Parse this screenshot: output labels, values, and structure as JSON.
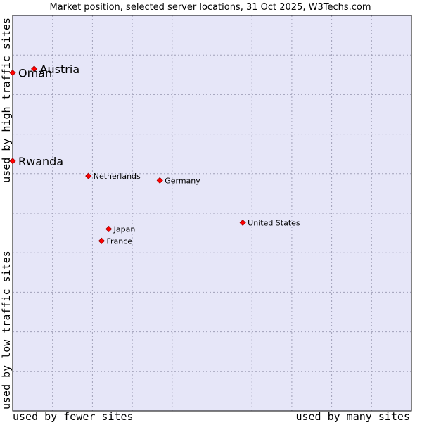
{
  "chart_data": {
    "type": "scatter",
    "title": "Market position, selected server locations, 31 Oct 2025, W3Techs.com",
    "x_axis": {
      "low_label": "used by fewer sites",
      "high_label": "used by many sites",
      "range": [
        0,
        100
      ]
    },
    "y_axis": {
      "low_label": "used by low traffic sites",
      "high_label": "used by high traffic sites",
      "range": [
        0,
        100
      ]
    },
    "grid": true,
    "colors": {
      "plot_background": "#e6e6f8",
      "grid": "#a0a0b8",
      "marker": "#ff0000",
      "marker_edge": "#990000",
      "text": "#000000"
    },
    "points": [
      {
        "label": "Austria",
        "x": 5.4,
        "y": 86.5,
        "emphasis": true
      },
      {
        "label": "Oman",
        "x": 0.0,
        "y": 85.5,
        "emphasis": true
      },
      {
        "label": "Rwanda",
        "x": 0.0,
        "y": 63.2,
        "emphasis": true
      },
      {
        "label": "Netherlands",
        "x": 19.0,
        "y": 59.4,
        "emphasis": false
      },
      {
        "label": "Germany",
        "x": 36.9,
        "y": 58.3,
        "emphasis": false
      },
      {
        "label": "United States",
        "x": 57.7,
        "y": 47.6,
        "emphasis": false
      },
      {
        "label": "Japan",
        "x": 24.1,
        "y": 46.0,
        "emphasis": false
      },
      {
        "label": "France",
        "x": 22.3,
        "y": 43.0,
        "emphasis": false
      }
    ]
  }
}
